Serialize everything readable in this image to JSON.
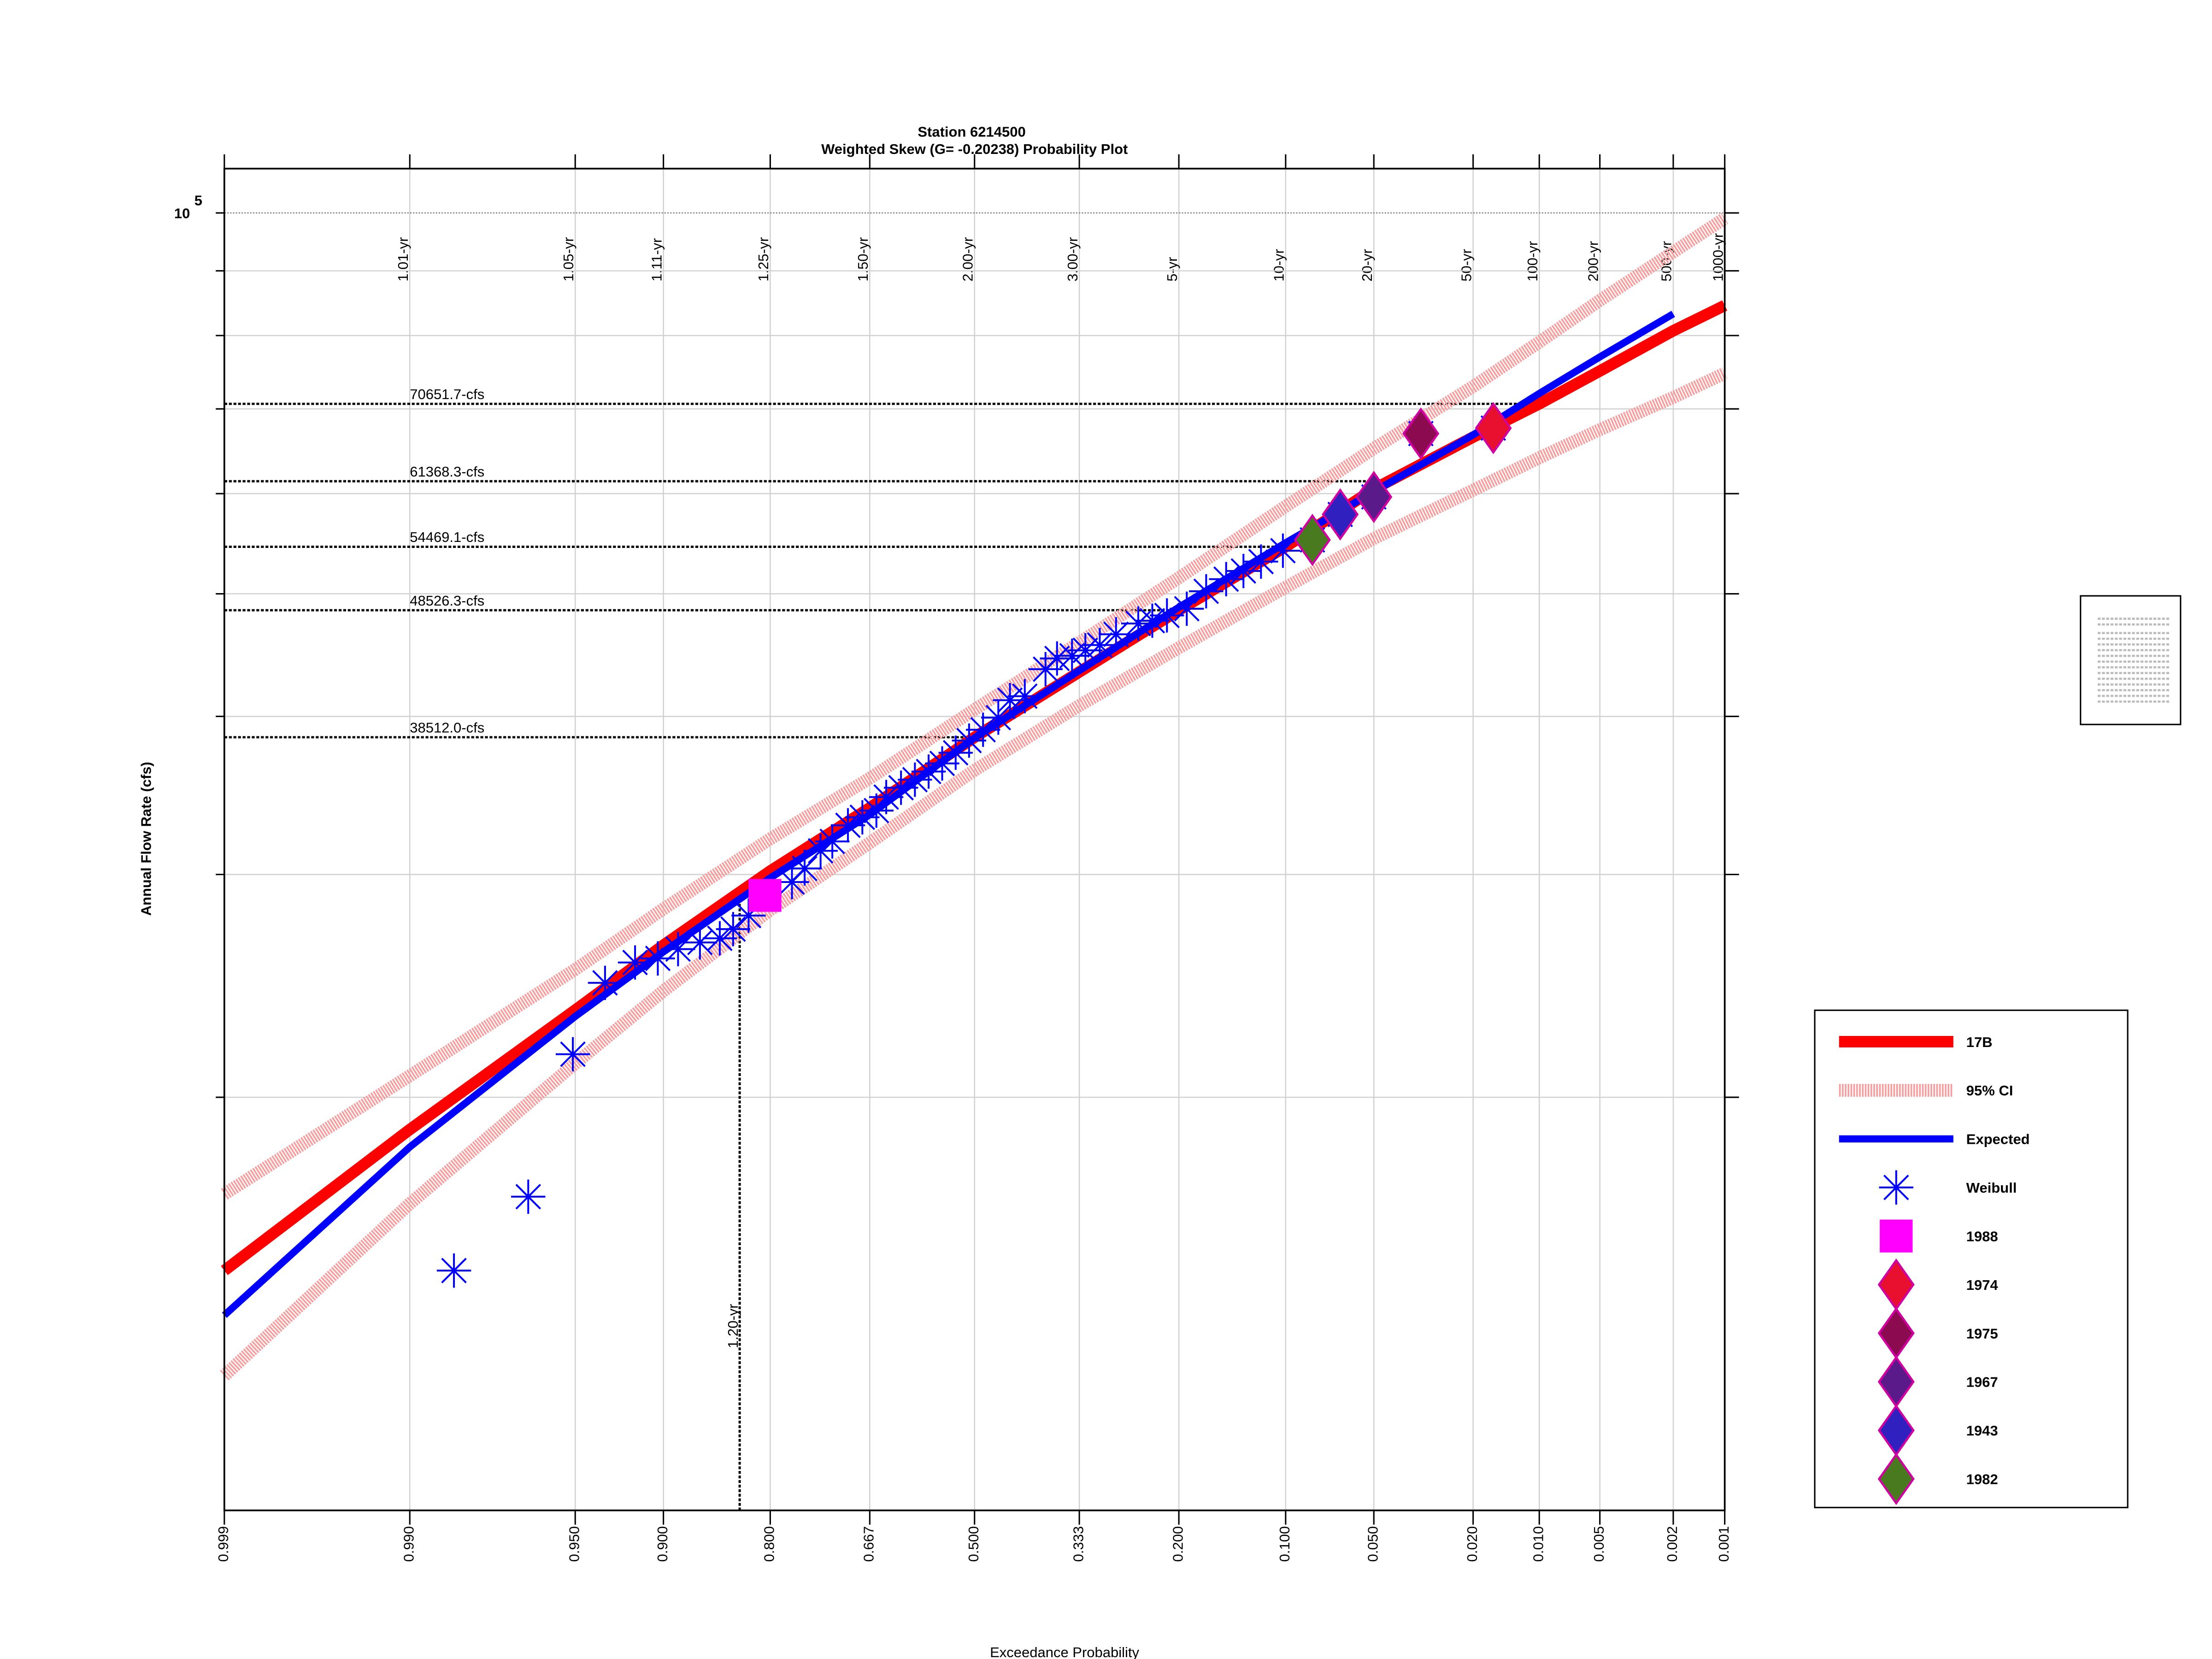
{
  "chart_data": {
    "type": "probability",
    "title": "Station 6214500",
    "subtitle": "Weighted Skew (G= -0.20238) Probability Plot",
    "x_label": "Exceedance Probability",
    "y_label": "Annual Flow Rate (cfs)",
    "xscale": "normal-probability",
    "yscale": "log",
    "grid": true,
    "legend_position": "right",
    "xlim": [
      0.999,
      0.001
    ],
    "ylim": [
      9430,
      108400
    ],
    "xticks": [
      {
        "value": 0.999,
        "label": "0.999"
      },
      {
        "value": 0.99,
        "label": "0.990"
      },
      {
        "value": 0.95,
        "label": "0.950"
      },
      {
        "value": 0.9,
        "label": "0.900"
      },
      {
        "value": 0.8,
        "label": "0.800"
      },
      {
        "value": 0.667,
        "label": "0.667"
      },
      {
        "value": 0.5,
        "label": "0.500"
      },
      {
        "value": 0.333,
        "label": "0.333"
      },
      {
        "value": 0.2,
        "label": "0.200"
      },
      {
        "value": 0.1,
        "label": "0.100"
      },
      {
        "value": 0.05,
        "label": "0.050"
      },
      {
        "value": 0.02,
        "label": "0.020"
      },
      {
        "value": 0.01,
        "label": "0.010"
      },
      {
        "value": 0.005,
        "label": "0.005"
      },
      {
        "value": 0.002,
        "label": "0.002"
      },
      {
        "value": 0.001,
        "label": "0.001"
      }
    ],
    "top_labels": [
      null,
      "1.01-yr",
      "1.05-yr",
      "1.11-yr",
      "1.25-yr",
      "1.50-yr",
      "2.00-yr",
      "3.00-yr",
      "5-yr",
      "10-yr",
      "20-yr",
      "50-yr",
      "100-yr",
      "200-yr",
      "500-yr",
      "1000-yr"
    ],
    "yticks": [
      {
        "value": 100000,
        "label": "10",
        "exponent": "5"
      }
    ],
    "minor_yticks": [
      20000,
      30000,
      40000,
      50000,
      60000,
      70000,
      80000,
      90000
    ],
    "reference_lines": [
      {
        "value": 70651.7,
        "label": "70651.7-cfs"
      },
      {
        "value": 61368.3,
        "label": "61368.3-cfs"
      },
      {
        "value": 54469.1,
        "label": "54469.1-cfs"
      },
      {
        "value": 48526.3,
        "label": "48526.3-cfs"
      },
      {
        "value": 38512.0,
        "label": "38512.0-cfs"
      }
    ],
    "return_line": {
      "value": 1.2,
      "label": "1.20-yr"
    },
    "series": [
      {
        "name": "17B",
        "kind": "line",
        "color": "#ff0000",
        "x": [
          0.999,
          0.99,
          0.95,
          0.9,
          0.8,
          0.667,
          0.5,
          0.333,
          0.2,
          0.1,
          0.05,
          0.02,
          0.01,
          0.005,
          0.002,
          0.001
        ],
        "values": [
          14590,
          18860,
          23440,
          26380,
          30190,
          33870,
          38510,
          43370,
          48530,
          54470,
          60500,
          66500,
          70650,
          75000,
          80700,
          84500
        ]
      },
      {
        "name": "95% CI",
        "kind": "band-lines",
        "color": "#f4a0a0",
        "x": [
          0.999,
          0.99,
          0.95,
          0.9,
          0.8,
          0.667,
          0.5,
          0.333,
          0.2,
          0.1,
          0.05,
          0.02,
          0.01,
          0.005,
          0.002,
          0.001
        ],
        "upper": [
          16770,
          20800,
          25240,
          28180,
          32010,
          35740,
          40500,
          45760,
          51480,
          58630,
          65140,
          72910,
          79060,
          85290,
          93140,
          99020
        ],
        "lower": [
          12050,
          16480,
          21270,
          24270,
          28120,
          31780,
          36270,
          40800,
          45320,
          50600,
          55290,
          60380,
          64050,
          67410,
          71480,
          74690
        ]
      },
      {
        "name": "Expected",
        "kind": "line",
        "color": "#0000ff",
        "x": [
          0.999,
          0.99,
          0.95,
          0.9,
          0.8,
          0.667,
          0.5,
          0.333,
          0.2,
          0.1,
          0.05,
          0.02,
          0.01,
          0.005,
          0.002,
          0.001
        ],
        "values": [
          13450,
          18270,
          23170,
          26060,
          29810,
          33450,
          38470,
          43480,
          48790,
          54860,
          60220,
          66760,
          72000,
          76950,
          83220,
          null
        ]
      },
      {
        "name": "Weibull",
        "kind": "scatter",
        "marker": "asterisk",
        "color": "#0000ff",
        "x": [
          0.984,
          0.967,
          0.951,
          0.936,
          0.919,
          0.904,
          0.889,
          0.871,
          0.853,
          0.84,
          0.824,
          0.774,
          0.758,
          0.737,
          0.721,
          0.699,
          0.678,
          0.657,
          0.642,
          0.619,
          0.597,
          0.575,
          0.553,
          0.531,
          0.509,
          0.486,
          0.461,
          0.442,
          0.418,
          0.385,
          0.367,
          0.344,
          0.324,
          0.303,
          0.28,
          0.25,
          0.232,
          0.214,
          0.191,
          0.17,
          0.15,
          0.134,
          0.119,
          0.102,
          0.082,
          0.066,
          0.05,
          0.033,
          0.0163
        ],
        "values": [
          14590,
          16690,
          21630,
          24630,
          25560,
          25750,
          26190,
          26510,
          26710,
          27160,
          27840,
          29590,
          30330,
          31320,
          31860,
          32810,
          33290,
          33700,
          34540,
          35130,
          35650,
          36180,
          36720,
          37440,
          38280,
          39040,
          39910,
          41200,
          41500,
          43590,
          44450,
          44670,
          45110,
          45550,
          46450,
          47370,
          47610,
          48070,
          48660,
          50230,
          51350,
          52120,
          53020,
          54080,
          55150,
          57770,
          59640,
          66930,
          67600
        ]
      },
      {
        "name": "1988",
        "kind": "scatter",
        "marker": "square",
        "color": "#ff00ff",
        "edge": "#ff00ff",
        "x": [
          0.806
        ],
        "values": [
          28880
        ]
      },
      {
        "name": "1974",
        "kind": "scatter",
        "marker": "diamond",
        "color": "#e8102e",
        "edge": "#d000a0",
        "x": [
          0.0163
        ],
        "values": [
          67600
        ]
      },
      {
        "name": "1975",
        "kind": "scatter",
        "marker": "diamond",
        "color": "#8b0a50",
        "edge": "#d000a0",
        "x": [
          0.033
        ],
        "values": [
          66930
        ]
      },
      {
        "name": "1967",
        "kind": "scatter",
        "marker": "diamond",
        "color": "#5a1a8a",
        "edge": "#d000a0",
        "x": [
          0.05
        ],
        "values": [
          59640
        ]
      },
      {
        "name": "1943",
        "kind": "scatter",
        "marker": "diamond",
        "color": "#3020c0",
        "edge": "#d000a0",
        "x": [
          0.066
        ],
        "values": [
          57770
        ]
      },
      {
        "name": "1982",
        "kind": "scatter",
        "marker": "diamond",
        "color": "#4a7a20",
        "edge": "#d000a0",
        "x": [
          0.082
        ],
        "values": [
          55150
        ]
      }
    ]
  }
}
